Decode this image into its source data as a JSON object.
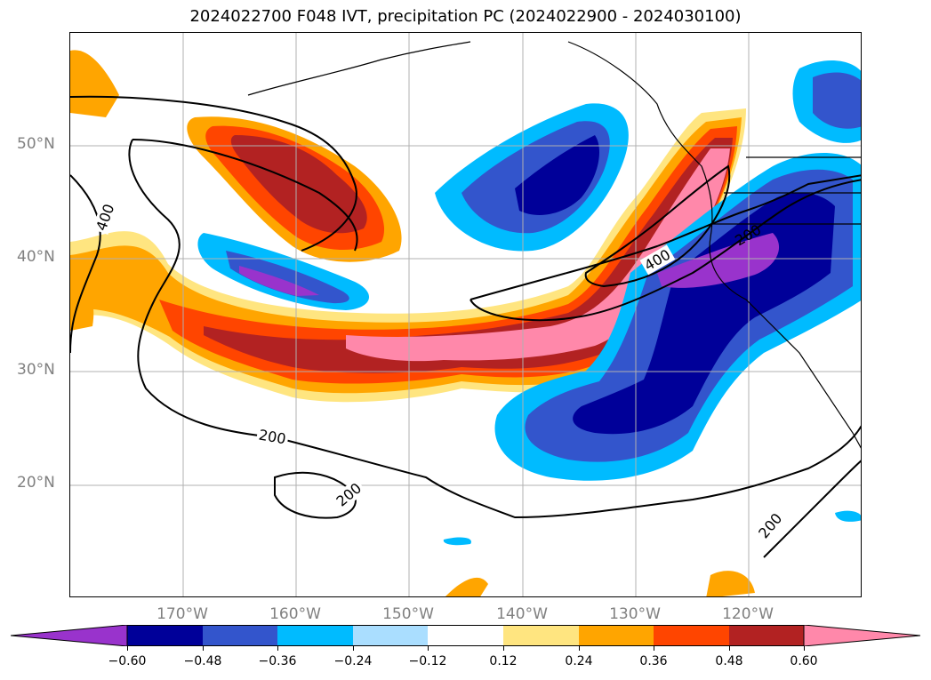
{
  "title": "2024022700 F048 IVT, precipitation PC (2024022900 - 2024030100)",
  "lat_labels": [
    "50°N",
    "40°N",
    "30°N",
    "20°N"
  ],
  "lon_labels": [
    "170°W",
    "160°W",
    "150°W",
    "140°W",
    "130°W",
    "120°W"
  ],
  "contour_labels": [
    "400",
    "200",
    "200",
    "400",
    "200",
    "200"
  ],
  "colorbar": {
    "ticks": [
      "−0.60",
      "−0.48",
      "−0.36",
      "−0.24",
      "−0.12",
      "0.12",
      "0.24",
      "0.36",
      "0.48",
      "0.60"
    ],
    "colors": [
      "#9933cc",
      "#000099",
      "#3355cc",
      "#00bbff",
      "#aadeff",
      "#ffffff",
      "#ffe580",
      "#ffa500",
      "#ff4500",
      "#b22222",
      "#ff88aa"
    ],
    "extend": "both"
  },
  "map_colors": {
    "magenta_pos": "#ff88aa",
    "dark_red": "#b22222",
    "red_orange": "#ff4500",
    "orange": "#ffa500",
    "yellow": "#ffe580",
    "light_blue": "#aadeff",
    "cyan": "#00bbff",
    "blue": "#3355cc",
    "navy": "#000099",
    "purple": "#9933cc"
  }
}
